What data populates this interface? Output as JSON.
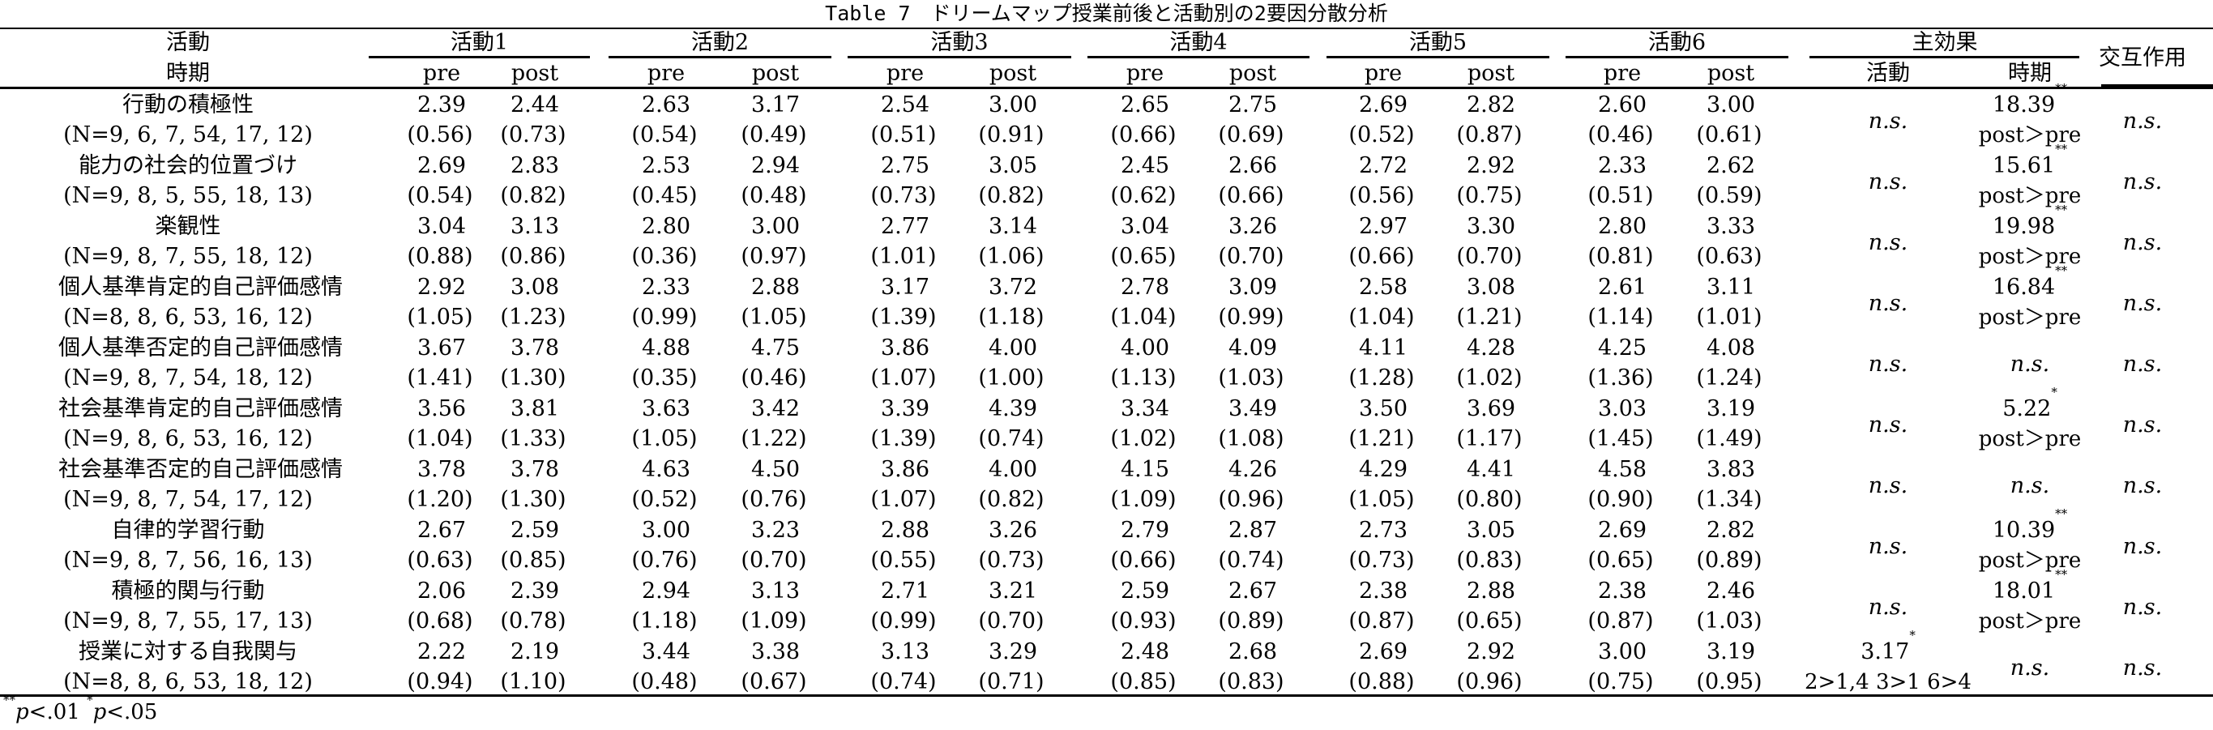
{
  "table": {
    "title": "Table 7　ドリームマップ授業前後と活動別の2要因分散分析",
    "header": {
      "activity_label": "活動",
      "period_label": "時期",
      "activities": [
        "活動1",
        "活動2",
        "活動3",
        "活動4",
        "活動5",
        "活動6"
      ],
      "pre": "pre",
      "post": "post",
      "main_effect": "主効果",
      "main_activity": "活動",
      "main_period": "時期",
      "interaction": "交互作用"
    },
    "rows": [
      {
        "name": "行動の積極性",
        "n": "(N=9, 6, 7, 54, 17, 12)",
        "means": [
          "2.39",
          "2.44",
          "2.63",
          "3.17",
          "2.54",
          "3.00",
          "2.65",
          "2.75",
          "2.69",
          "2.82",
          "2.60",
          "3.00"
        ],
        "sds": [
          "(0.56)",
          "(0.73)",
          "(0.54)",
          "(0.49)",
          "(0.51)",
          "(0.91)",
          "(0.66)",
          "(0.69)",
          "(0.52)",
          "(0.87)",
          "(0.46)",
          "(0.61)"
        ],
        "activity_effect": "n.s.",
        "activity_effect_sig": "",
        "activity_effect_note": "",
        "period_effect": "18.39",
        "period_effect_sig": "**",
        "period_effect_note": "post＞pre",
        "interaction": "n.s."
      },
      {
        "name": "能力の社会的位置づけ",
        "n": "(N=9, 8, 5, 55, 18, 13)",
        "means": [
          "2.69",
          "2.83",
          "2.53",
          "2.94",
          "2.75",
          "3.05",
          "2.45",
          "2.66",
          "2.72",
          "2.92",
          "2.33",
          "2.62"
        ],
        "sds": [
          "(0.54)",
          "(0.82)",
          "(0.45)",
          "(0.48)",
          "(0.73)",
          "(0.82)",
          "(0.62)",
          "(0.66)",
          "(0.56)",
          "(0.75)",
          "(0.51)",
          "(0.59)"
        ],
        "activity_effect": "n.s.",
        "activity_effect_sig": "",
        "activity_effect_note": "",
        "period_effect": "15.61",
        "period_effect_sig": "**",
        "period_effect_note": "post＞pre",
        "interaction": "n.s."
      },
      {
        "name": "楽観性",
        "n": "(N=9, 8, 7, 55, 18, 12)",
        "means": [
          "3.04",
          "3.13",
          "2.80",
          "3.00",
          "2.77",
          "3.14",
          "3.04",
          "3.26",
          "2.97",
          "3.30",
          "2.80",
          "3.33"
        ],
        "sds": [
          "(0.88)",
          "(0.86)",
          "(0.36)",
          "(0.97)",
          "(1.01)",
          "(1.06)",
          "(0.65)",
          "(0.70)",
          "(0.66)",
          "(0.70)",
          "(0.81)",
          "(0.63)"
        ],
        "activity_effect": "n.s.",
        "activity_effect_sig": "",
        "activity_effect_note": "",
        "period_effect": "19.98",
        "period_effect_sig": "**",
        "period_effect_note": "post＞pre",
        "interaction": "n.s."
      },
      {
        "name": "個人基準肯定的自己評価感情",
        "n": "(N=8, 8, 6, 53, 16, 12)",
        "means": [
          "2.92",
          "3.08",
          "2.33",
          "2.88",
          "3.17",
          "3.72",
          "2.78",
          "3.09",
          "2.58",
          "3.08",
          "2.61",
          "3.11"
        ],
        "sds": [
          "(1.05)",
          "(1.23)",
          "(0.99)",
          "(1.05)",
          "(1.39)",
          "(1.18)",
          "(1.04)",
          "(0.99)",
          "(1.04)",
          "(1.21)",
          "(1.14)",
          "(1.01)"
        ],
        "activity_effect": "n.s.",
        "activity_effect_sig": "",
        "activity_effect_note": "",
        "period_effect": "16.84",
        "period_effect_sig": "**",
        "period_effect_note": "post＞pre",
        "interaction": "n.s."
      },
      {
        "name": "個人基準否定的自己評価感情",
        "n": "(N=9, 8, 7, 54, 18, 12)",
        "means": [
          "3.67",
          "3.78",
          "4.88",
          "4.75",
          "3.86",
          "4.00",
          "4.00",
          "4.09",
          "4.11",
          "4.28",
          "4.25",
          "4.08"
        ],
        "sds": [
          "(1.41)",
          "(1.30)",
          "(0.35)",
          "(0.46)",
          "(1.07)",
          "(1.00)",
          "(1.13)",
          "(1.03)",
          "(1.28)",
          "(1.02)",
          "(1.36)",
          "(1.24)"
        ],
        "activity_effect": "n.s.",
        "activity_effect_sig": "",
        "activity_effect_note": "",
        "period_effect": "n.s.",
        "period_effect_sig": "",
        "period_effect_note": "",
        "interaction": "n.s."
      },
      {
        "name": "社会基準肯定的自己評価感情",
        "n": "(N=9, 8, 6, 53, 16, 12)",
        "means": [
          "3.56",
          "3.81",
          "3.63",
          "3.42",
          "3.39",
          "4.39",
          "3.34",
          "3.49",
          "3.50",
          "3.69",
          "3.03",
          "3.19"
        ],
        "sds": [
          "(1.04)",
          "(1.33)",
          "(1.05)",
          "(1.22)",
          "(1.39)",
          "(0.74)",
          "(1.02)",
          "(1.08)",
          "(1.21)",
          "(1.17)",
          "(1.45)",
          "(1.49)"
        ],
        "activity_effect": "n.s.",
        "activity_effect_sig": "",
        "activity_effect_note": "",
        "period_effect": "5.22",
        "period_effect_sig": "*",
        "period_effect_note": "post＞pre",
        "interaction": "n.s."
      },
      {
        "name": "社会基準否定的自己評価感情",
        "n": "(N=9, 8, 7, 54, 17, 12)",
        "means": [
          "3.78",
          "3.78",
          "4.63",
          "4.50",
          "3.86",
          "4.00",
          "4.15",
          "4.26",
          "4.29",
          "4.41",
          "4.58",
          "3.83"
        ],
        "sds": [
          "(1.20)",
          "(1.30)",
          "(0.52)",
          "(0.76)",
          "(1.07)",
          "(0.82)",
          "(1.09)",
          "(0.96)",
          "(1.05)",
          "(0.80)",
          "(0.90)",
          "(1.34)"
        ],
        "activity_effect": "n.s.",
        "activity_effect_sig": "",
        "activity_effect_note": "",
        "period_effect": "n.s.",
        "period_effect_sig": "",
        "period_effect_note": "",
        "interaction": "n.s."
      },
      {
        "name": "自律的学習行動",
        "n": "(N=9, 8, 7, 56, 16, 13)",
        "means": [
          "2.67",
          "2.59",
          "3.00",
          "3.23",
          "2.88",
          "3.26",
          "2.79",
          "2.87",
          "2.73",
          "3.05",
          "2.69",
          "2.82"
        ],
        "sds": [
          "(0.63)",
          "(0.85)",
          "(0.76)",
          "(0.70)",
          "(0.55)",
          "(0.73)",
          "(0.66)",
          "(0.74)",
          "(0.73)",
          "(0.83)",
          "(0.65)",
          "(0.89)"
        ],
        "activity_effect": "n.s.",
        "activity_effect_sig": "",
        "activity_effect_note": "",
        "period_effect": "10.39",
        "period_effect_sig": "**",
        "period_effect_note": "post＞pre",
        "interaction": "n.s."
      },
      {
        "name": "積極的関与行動",
        "n": "(N=9, 8, 7, 55, 17, 13)",
        "means": [
          "2.06",
          "2.39",
          "2.94",
          "3.13",
          "2.71",
          "3.21",
          "2.59",
          "2.67",
          "2.38",
          "2.88",
          "2.38",
          "2.46"
        ],
        "sds": [
          "(0.68)",
          "(0.78)",
          "(1.18)",
          "(1.09)",
          "(0.99)",
          "(0.70)",
          "(0.93)",
          "(0.89)",
          "(0.87)",
          "(0.65)",
          "(0.87)",
          "(1.03)"
        ],
        "activity_effect": "n.s.",
        "activity_effect_sig": "",
        "activity_effect_note": "",
        "period_effect": "18.01",
        "period_effect_sig": "**",
        "period_effect_note": "post＞pre",
        "interaction": "n.s."
      },
      {
        "name": "授業に対する自我関与",
        "n": "(N=8, 8, 6, 53, 18, 12)",
        "means": [
          "2.22",
          "2.19",
          "3.44",
          "3.38",
          "3.13",
          "3.29",
          "2.48",
          "2.68",
          "2.69",
          "2.92",
          "3.00",
          "3.19"
        ],
        "sds": [
          "(0.94)",
          "(1.10)",
          "(0.48)",
          "(0.67)",
          "(0.74)",
          "(0.71)",
          "(0.85)",
          "(0.83)",
          "(0.88)",
          "(0.96)",
          "(0.75)",
          "(0.95)"
        ],
        "activity_effect": "3.17",
        "activity_effect_sig": "*",
        "activity_effect_note": "2>1,4 3>1 6>4",
        "period_effect": "n.s.",
        "period_effect_sig": "",
        "period_effect_note": "",
        "interaction": "n.s."
      }
    ],
    "footnote": {
      "sig1": "**",
      "p1": "p",
      "lt1": "<.01",
      "sig2": "*",
      "p2": "p",
      "lt2": "<.05"
    }
  }
}
